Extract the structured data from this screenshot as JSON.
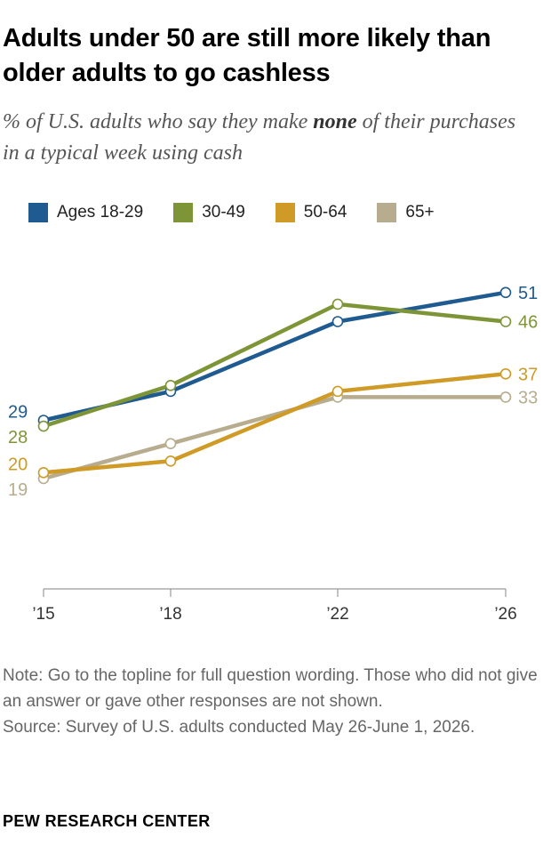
{
  "header": {
    "title": "Adults under 50 are still more likely than older adults to go cashless",
    "subtitle_before": "% of U.S. adults who say they make ",
    "subtitle_emphasis": "none",
    "subtitle_after": " of their purchases in a typical week using cash"
  },
  "chart_data": {
    "type": "line",
    "x": [
      "’15",
      "’18",
      "’22",
      "’26"
    ],
    "ylim": [
      0,
      60
    ],
    "grid": false,
    "legend_position": "top",
    "series": [
      {
        "name": "Ages 18-29",
        "color": "#1f5a91",
        "values": [
          29,
          34,
          46,
          51
        ],
        "start_label": "29",
        "end_label": "51"
      },
      {
        "name": "30-49",
        "color": "#7e9537",
        "values": [
          28,
          35,
          49,
          46
        ],
        "start_label": "28",
        "end_label": "46"
      },
      {
        "name": "50-64",
        "color": "#cf9a25",
        "values": [
          20,
          22,
          34,
          37
        ],
        "start_label": "20",
        "end_label": "37"
      },
      {
        "name": "65+",
        "color": "#b8ac8e",
        "values": [
          19,
          25,
          33,
          33
        ],
        "start_label": "19",
        "end_label": "33"
      }
    ]
  },
  "notes": {
    "note": "Note: Go to the topline for full question wording. Those who did not give an answer or gave other responses are not shown.",
    "source": "Source: Survey of U.S. adults conducted May 26-June 1, 2026."
  },
  "footer": {
    "brand": "PEW RESEARCH CENTER"
  }
}
